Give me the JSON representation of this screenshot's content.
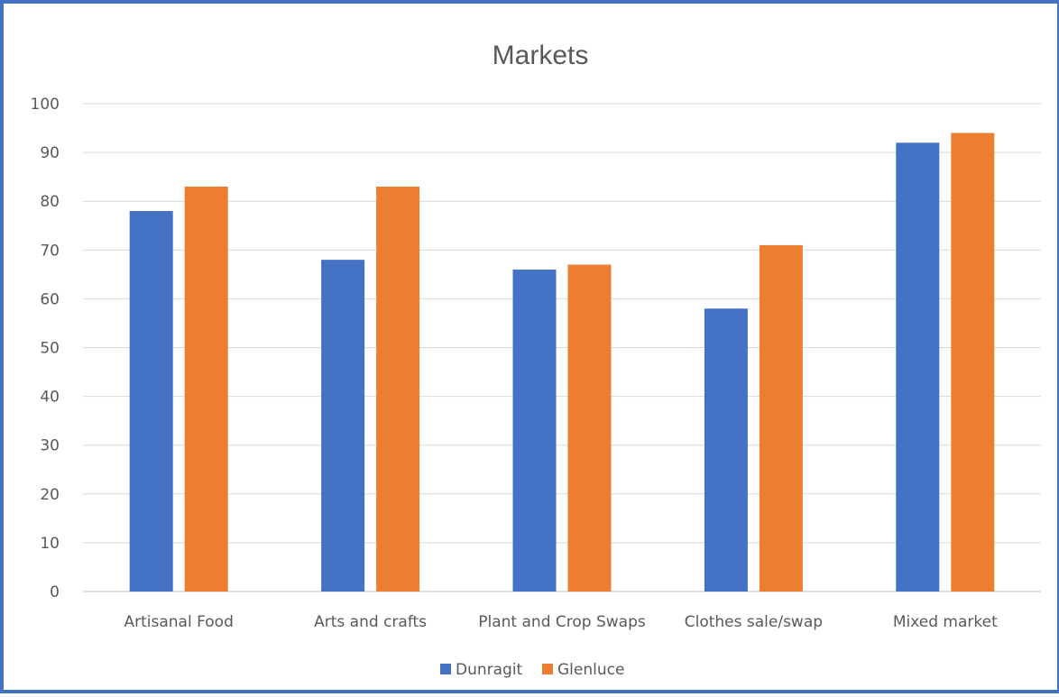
{
  "chart_data": {
    "type": "bar",
    "title": "Markets",
    "xlabel": "",
    "ylabel": "",
    "ylim": [
      0,
      100
    ],
    "yticks": [
      0,
      10,
      20,
      30,
      40,
      50,
      60,
      70,
      80,
      90,
      100
    ],
    "grid": true,
    "legend_position": "bottom",
    "categories": [
      "Artisanal Food",
      "Arts and crafts",
      "Plant and Crop Swaps",
      "Clothes sale/swap",
      "Mixed market"
    ],
    "series": [
      {
        "name": "Dunragit",
        "color": "#4472c4",
        "values": [
          78,
          68,
          66,
          58,
          92
        ]
      },
      {
        "name": "Glenluce",
        "color": "#ed7d31",
        "values": [
          83,
          83,
          67,
          71,
          94
        ]
      }
    ]
  }
}
